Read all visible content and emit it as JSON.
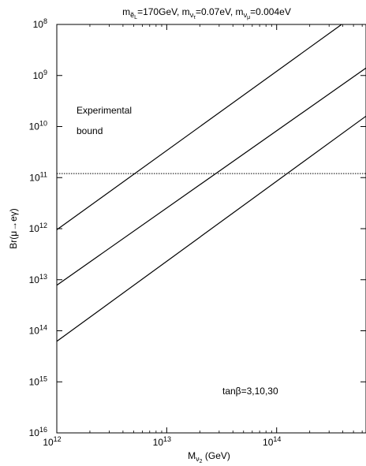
{
  "chart_data": {
    "type": "line",
    "title": {
      "base1": "m",
      "sub1": "ẽ",
      "subsub1": "L",
      "text1": "=170GeV, m",
      "sub2": "ν",
      "subsub2": "τ",
      "text2": "=0.07eV, m",
      "sub3": "ν",
      "subsub3": "μ",
      "text3": "=0.004eV"
    },
    "xlabel": {
      "base": "M",
      "sub": "ν",
      "subsub": "2",
      "unit": " (GeV)"
    },
    "ylabel": "Br(μ→eγ)",
    "x_scale": "log",
    "y_scale": "log",
    "xlim": [
      1000000000000.0,
      650000000000000.0
    ],
    "ylim": [
      1e-08,
      1e-16
    ],
    "y_axis_inverted": true,
    "x_ticks": [
      {
        "value": 1000000000000.0,
        "base": "10",
        "exp": "12"
      },
      {
        "value": 10000000000000.0,
        "base": "10",
        "exp": "13"
      },
      {
        "value": 100000000000000.0,
        "base": "10",
        "exp": "14"
      }
    ],
    "y_ticks": [
      {
        "value": 1e-08,
        "base": "10",
        "exp": "8"
      },
      {
        "value": 1e-09,
        "base": "10",
        "exp": "9"
      },
      {
        "value": 1e-10,
        "base": "10",
        "exp": "10"
      },
      {
        "value": 1e-11,
        "base": "10",
        "exp": "11"
      },
      {
        "value": 1e-12,
        "base": "10",
        "exp": "12"
      },
      {
        "value": 1e-13,
        "base": "10",
        "exp": "13"
      },
      {
        "value": 1e-14,
        "base": "10",
        "exp": "14"
      },
      {
        "value": 1e-15,
        "base": "10",
        "exp": "15"
      },
      {
        "value": 1e-16,
        "base": "10",
        "exp": "16"
      }
    ],
    "series": [
      {
        "x": [
          1000000000000.0,
          390000000000000.0
        ],
        "y": [
          9.5e-13,
          1e-08
        ]
      },
      {
        "x": [
          1000000000000.0,
          650000000000000.0
        ],
        "y": [
          7.8e-14,
          1.4e-09
        ]
      },
      {
        "x": [
          1000000000000.0,
          650000000000000.0
        ],
        "y": [
          6.2e-15,
          1.6e-10
        ]
      }
    ],
    "bound": {
      "y": 1.2e-11,
      "style": "dotted"
    },
    "annotations": {
      "bound_line1": "Experimental",
      "bound_line2": "bound",
      "tanbeta": "tanβ=3,10,30"
    },
    "grid": false,
    "colors": {
      "line": "#000000",
      "background": "#ffffff"
    }
  }
}
